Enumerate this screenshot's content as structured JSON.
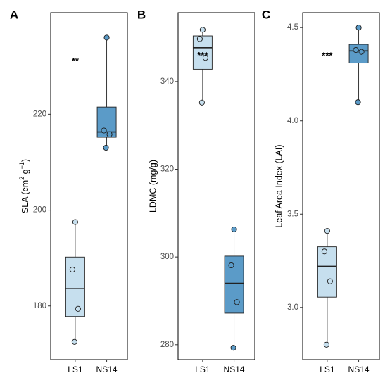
{
  "colors": {
    "ls1": "#c6dfee",
    "ns14": "#5b9bc8",
    "line": "#222222",
    "frame": "#000000"
  },
  "chart_data": [
    {
      "type": "boxplot",
      "panel_label": "A",
      "ylabel": "SLA (cm² g⁻¹)",
      "ylabel_parts": {
        "base": "SLA (cm",
        "sup1": "2",
        "mid": " g",
        "sup2": "−1",
        "end": ")"
      },
      "ylim": [
        168.8,
        241.2
      ],
      "yticks": [
        180,
        200,
        220
      ],
      "categories": [
        "LS1",
        "NS14"
      ],
      "boxes": [
        {
          "category": "LS1",
          "min": 172.5,
          "q1": 177.8,
          "median": 183.6,
          "q3": 190.2,
          "max": 197.5,
          "points": [
            172.5,
            179.4,
            187.6,
            197.5
          ]
        },
        {
          "category": "NS14",
          "min": 213.0,
          "q1": 215.2,
          "median": 216.3,
          "q3": 221.5,
          "max": 236.0,
          "points": [
            213.0,
            215.8,
            216.6,
            236.0
          ]
        }
      ],
      "annotation": {
        "text": "**",
        "y": 231.0
      }
    },
    {
      "type": "boxplot",
      "panel_label": "B",
      "ylabel": "LDMC (mg/g)",
      "ylim": [
        276.6,
        355.7
      ],
      "yticks": [
        280,
        300,
        320,
        340
      ],
      "categories": [
        "LS1",
        "NS14"
      ],
      "boxes": [
        {
          "category": "LS1",
          "min": 335.2,
          "q1": 342.8,
          "median": 347.7,
          "q3": 350.4,
          "max": 351.8,
          "points": [
            335.2,
            345.4,
            349.7,
            351.8
          ]
        },
        {
          "category": "NS14",
          "min": 279.3,
          "q1": 287.2,
          "median": 294.0,
          "q3": 300.2,
          "max": 306.3,
          "points": [
            279.3,
            289.7,
            298.1,
            306.3
          ]
        }
      ],
      "annotation": {
        "text": "***",
        "y": 345.8
      }
    },
    {
      "type": "boxplot",
      "panel_label": "C",
      "ylabel": "Leaf Area Index (LAI)",
      "ylim": [
        2.72,
        4.58
      ],
      "yticks": [
        3.0,
        3.5,
        4.0,
        4.5
      ],
      "ytick_labels": [
        "3.0",
        "3.5",
        "4.0",
        "4.5"
      ],
      "categories": [
        "LS1",
        "NS14"
      ],
      "boxes": [
        {
          "category": "LS1",
          "min": 2.8,
          "q1": 3.055,
          "median": 3.22,
          "q3": 3.325,
          "max": 3.41,
          "points": [
            2.8,
            3.14,
            3.3,
            3.41
          ]
        },
        {
          "category": "NS14",
          "min": 4.1,
          "q1": 4.31,
          "median": 4.375,
          "q3": 4.41,
          "max": 4.5,
          "points": [
            4.1,
            4.37,
            4.38,
            4.5
          ]
        }
      ],
      "annotation": {
        "text": "***",
        "y": 4.345
      }
    }
  ]
}
